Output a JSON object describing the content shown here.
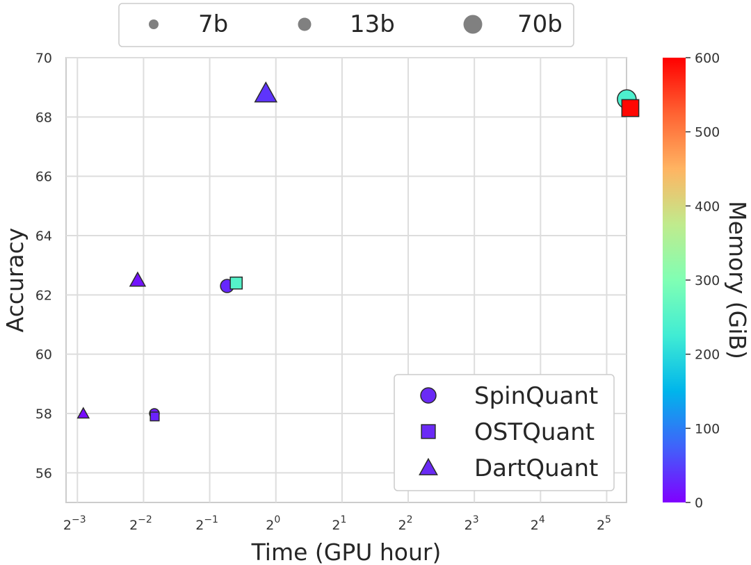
{
  "chart_data": {
    "type": "scatter",
    "xlabel": "Time (GPU hour)",
    "ylabel": "Accuracy",
    "xscale": "log2",
    "xlim": [
      0.111,
      39.4
    ],
    "ylim": [
      55,
      70
    ],
    "xticks": [
      0.125,
      0.25,
      0.5,
      1,
      2,
      4,
      8,
      16,
      32
    ],
    "xtick_labels": [
      {
        "base": "2",
        "exp": "−3"
      },
      {
        "base": "2",
        "exp": "−2"
      },
      {
        "base": "2",
        "exp": "−1"
      },
      {
        "base": "2",
        "exp": "0"
      },
      {
        "base": "2",
        "exp": "1"
      },
      {
        "base": "2",
        "exp": "2"
      },
      {
        "base": "2",
        "exp": "3"
      },
      {
        "base": "2",
        "exp": "4"
      },
      {
        "base": "2",
        "exp": "5"
      }
    ],
    "yticks": [
      "56",
      "58",
      "60",
      "62",
      "64",
      "66",
      "68",
      "70"
    ],
    "grid": true,
    "colorbar": {
      "label": "Memory (GiB)",
      "min": 0,
      "max": 600,
      "ticks": [
        "0",
        "100",
        "200",
        "300",
        "400",
        "500",
        "600"
      ],
      "colormap": "rainbow",
      "colors": [
        "#8000ff",
        "#4062fa",
        "#00b5eb",
        "#40ecd4",
        "#80ffb4",
        "#c0eb8d",
        "#ffb462",
        "#ff6232",
        "#ff0000"
      ]
    },
    "size_legend": {
      "location": "top-center",
      "entries": [
        {
          "label": "7b",
          "model": "7b"
        },
        {
          "label": "13b",
          "model": "13b"
        },
        {
          "label": "70b",
          "model": "70b"
        }
      ]
    },
    "method_legend": {
      "location": "lower-right",
      "entries": [
        {
          "label": "SpinQuant",
          "marker": "circle"
        },
        {
          "label": "OSTQuant",
          "marker": "square"
        },
        {
          "label": "DartQuant",
          "marker": "triangle"
        }
      ],
      "marker_color": "#6a2af5"
    },
    "points": [
      {
        "method": "SpinQuant",
        "model": "7b",
        "x": 0.28,
        "y": 58.0,
        "memory": 20
      },
      {
        "method": "OSTQuant",
        "model": "7b",
        "x": 0.281,
        "y": 57.9,
        "memory": 25
      },
      {
        "method": "DartQuant",
        "model": "7b",
        "x": 0.133,
        "y": 58.0,
        "memory": 10
      },
      {
        "method": "SpinQuant",
        "model": "13b",
        "x": 0.6,
        "y": 62.3,
        "memory": 30
      },
      {
        "method": "OSTQuant",
        "model": "13b",
        "x": 0.66,
        "y": 62.4,
        "memory": 250
      },
      {
        "method": "DartQuant",
        "model": "13b",
        "x": 0.235,
        "y": 62.5,
        "memory": 15
      },
      {
        "method": "SpinQuant",
        "model": "70b",
        "x": 39.5,
        "y": 68.6,
        "memory": 240
      },
      {
        "method": "OSTQuant",
        "model": "70b",
        "x": 41.0,
        "y": 68.3,
        "memory": 595
      },
      {
        "method": "DartQuant",
        "model": "70b",
        "x": 0.9,
        "y": 68.8,
        "memory": 40
      }
    ]
  }
}
